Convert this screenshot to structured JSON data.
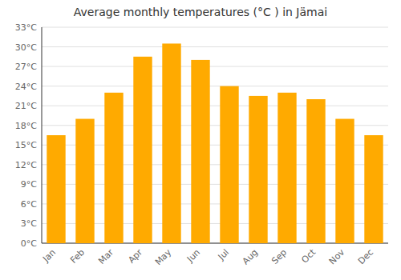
{
  "chart_data": {
    "type": "bar",
    "title": "Average monthly temperatures (°C ) in Jämai",
    "categories": [
      "Jan",
      "Feb",
      "Mar",
      "Apr",
      "May",
      "Jun",
      "Jul",
      "Aug",
      "Sep",
      "Oct",
      "Nov",
      "Dec"
    ],
    "values": [
      16.5,
      19.0,
      23.0,
      28.5,
      30.5,
      28.0,
      24.0,
      22.5,
      23.0,
      22.0,
      19.0,
      16.5
    ],
    "color": "#FFAA00",
    "ylim": [
      0,
      33
    ],
    "yticks": [
      {
        "value": 0,
        "label": "0°C"
      },
      {
        "value": 3,
        "label": "3°C"
      },
      {
        "value": 6,
        "label": "6°C"
      },
      {
        "value": 9,
        "label": "9°C"
      },
      {
        "value": 12,
        "label": "12°C"
      },
      {
        "value": 15,
        "label": "15°C"
      },
      {
        "value": 18,
        "label": "18°C"
      },
      {
        "value": 21,
        "label": "21°C"
      },
      {
        "value": 24,
        "label": "24°C"
      },
      {
        "value": 27,
        "label": "27°C"
      },
      {
        "value": 30,
        "label": "30°C"
      },
      {
        "value": 33,
        "label": "33°C"
      }
    ],
    "grid": true
  }
}
